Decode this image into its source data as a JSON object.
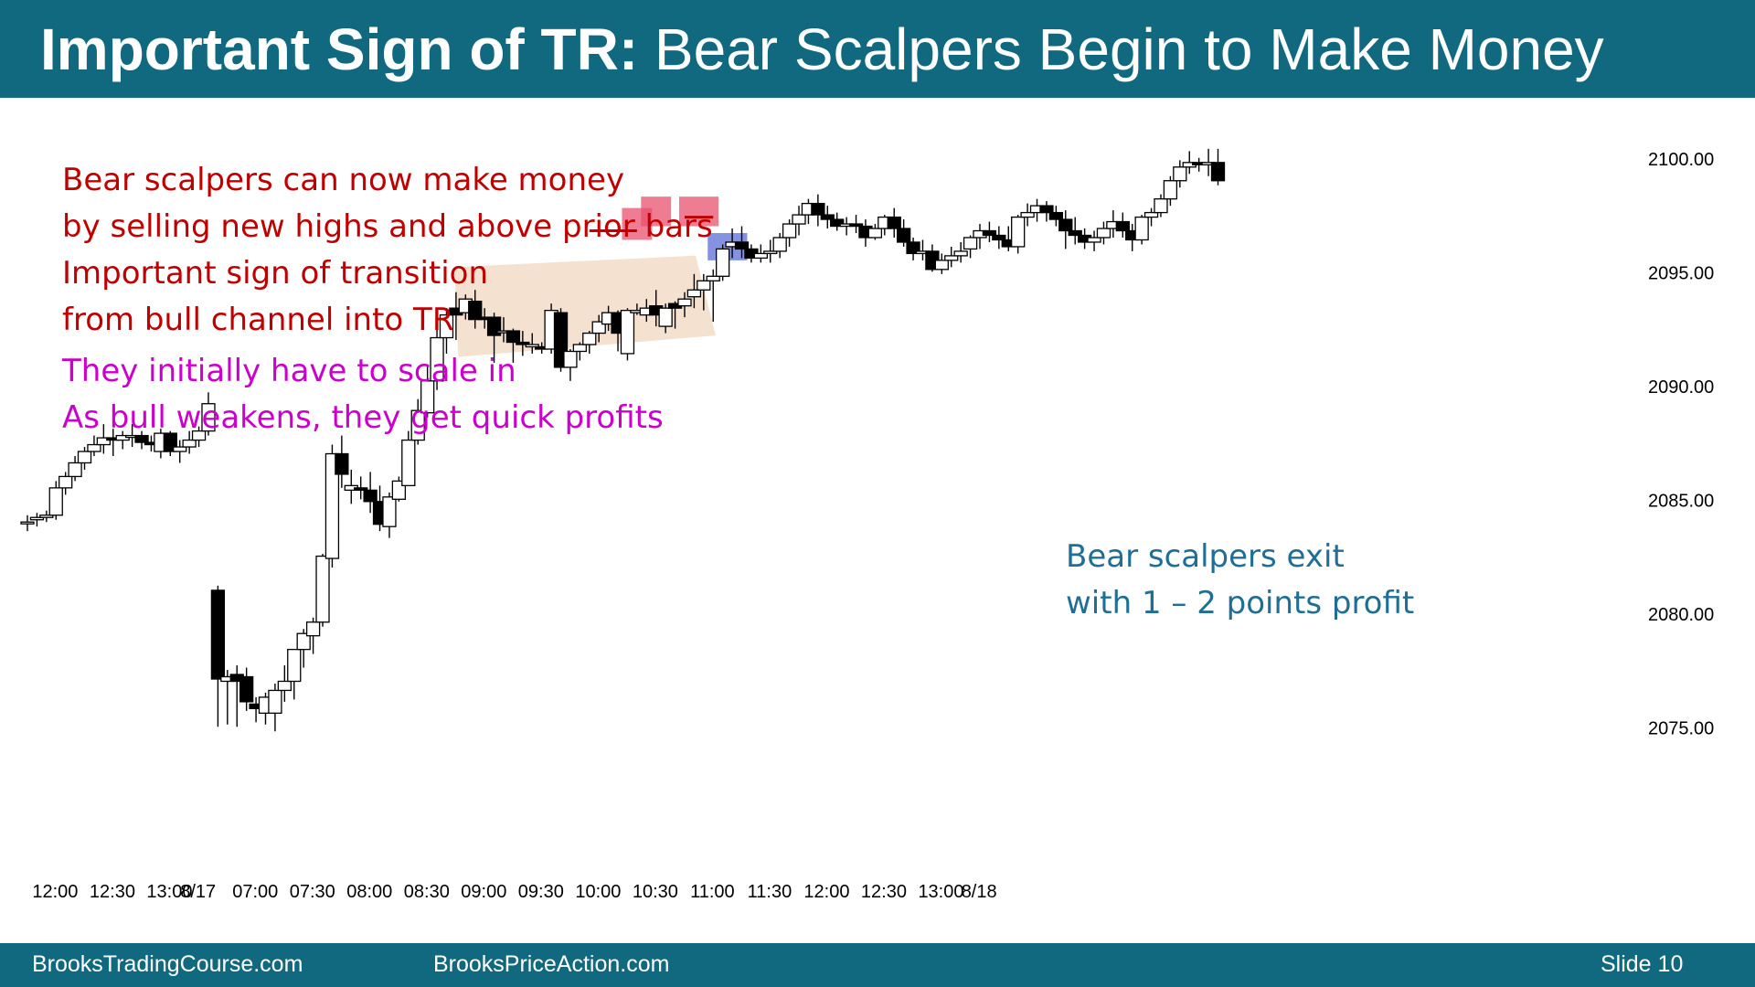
{
  "header": {
    "title_bold": "Important Sign of TR:",
    "title_rest": " Bear Scalpers Begin to Make Money",
    "bg_color": "#10697f"
  },
  "notes": [
    {
      "text": "Bear scalpers can now make money",
      "color": "#c00000"
    },
    {
      "text": "by selling new highs and above prior bars",
      "color": "#c00000"
    },
    {
      "text": "Important sign of transition",
      "color": "#c00000"
    },
    {
      "text": "from bull channel into TR",
      "color": "#c00000"
    },
    {
      "text": "They initially have to scale in",
      "color": "#cc00cc"
    },
    {
      "text": "As bull weakens, they get quick profits",
      "color": "#cc00cc"
    }
  ],
  "callout": {
    "lines": [
      "Bear scalpers exit",
      "with 1 – 2 points profit"
    ],
    "color": "#1f6e96"
  },
  "footer": {
    "left": "BrooksTradingCourse.com",
    "middle": "BrooksPriceAction.com",
    "right": "Slide  10"
  },
  "chart_data": {
    "type": "candlestick",
    "y_ticks": [
      2100,
      2095,
      2090,
      2085,
      2080,
      2075
    ],
    "y_tick_labels": [
      "2100.00",
      "2095.00",
      "2090.00",
      "2085.00",
      "2080.00",
      "2075.00"
    ],
    "ylim": [
      2072.2,
      2101.6
    ],
    "x_tick_labels": [
      {
        "bar": 1,
        "label": "12:00"
      },
      {
        "bar": 7,
        "label": "12:30"
      },
      {
        "bar": 13,
        "label": "13:00"
      },
      {
        "bar": 16,
        "label": "8/17"
      },
      {
        "bar": 22,
        "label": "07:00"
      },
      {
        "bar": 28,
        "label": "07:30"
      },
      {
        "bar": 34,
        "label": "08:00"
      },
      {
        "bar": 40,
        "label": "08:30"
      },
      {
        "bar": 46,
        "label": "09:00"
      },
      {
        "bar": 52,
        "label": "09:30"
      },
      {
        "bar": 58,
        "label": "10:00"
      },
      {
        "bar": 64,
        "label": "10:30"
      },
      {
        "bar": 70,
        "label": "11:00"
      },
      {
        "bar": 76,
        "label": "11:30"
      },
      {
        "bar": 82,
        "label": "12:00"
      },
      {
        "bar": 88,
        "label": "12:30"
      },
      {
        "bar": 94,
        "label": "13:00"
      },
      {
        "bar": 98,
        "label": "8/18"
      }
    ],
    "ohlc": [
      [
        2084.0,
        2084.3,
        2083.6,
        2084.0
      ],
      [
        2084.1,
        2084.4,
        2083.8,
        2084.2
      ],
      [
        2084.2,
        2084.5,
        2084.0,
        2084.3
      ],
      [
        2084.3,
        2085.8,
        2084.1,
        2085.5
      ],
      [
        2085.5,
        2086.2,
        2085.2,
        2086.0
      ],
      [
        2086.0,
        2086.9,
        2085.8,
        2086.6
      ],
      [
        2086.6,
        2087.3,
        2086.3,
        2087.1
      ],
      [
        2087.1,
        2087.8,
        2086.9,
        2087.4
      ],
      [
        2087.4,
        2088.3,
        2087.0,
        2087.7
      ],
      [
        2087.7,
        2088.1,
        2086.9,
        2087.6
      ],
      [
        2087.6,
        2088.0,
        2087.2,
        2087.8
      ],
      [
        2087.8,
        2088.3,
        2087.3,
        2087.8
      ],
      [
        2087.8,
        2088.0,
        2087.2,
        2087.5
      ],
      [
        2087.5,
        2087.8,
        2087.1,
        2087.4
      ],
      [
        2087.1,
        2088.1,
        2086.8,
        2087.9
      ],
      [
        2087.9,
        2088.0,
        2086.9,
        2087.1
      ],
      [
        2087.1,
        2087.6,
        2086.6,
        2087.3
      ],
      [
        2087.3,
        2088.0,
        2087.0,
        2087.6
      ],
      [
        2087.6,
        2088.2,
        2087.3,
        2088.0
      ],
      [
        2088.0,
        2089.7,
        2087.8,
        2089.2
      ],
      [
        2081.0,
        2081.2,
        2075.0,
        2077.1
      ],
      [
        2077.0,
        2077.5,
        2075.1,
        2077.2
      ],
      [
        2077.3,
        2077.7,
        2075.0,
        2077.0
      ],
      [
        2077.2,
        2077.6,
        2075.7,
        2076.1
      ],
      [
        2076.0,
        2076.3,
        2075.2,
        2075.8
      ],
      [
        2075.6,
        2076.5,
        2075.1,
        2076.3
      ],
      [
        2075.6,
        2076.9,
        2074.8,
        2076.6
      ],
      [
        2076.6,
        2077.7,
        2076.1,
        2077.0
      ],
      [
        2077.0,
        2078.4,
        2076.2,
        2078.4
      ],
      [
        2078.4,
        2079.3,
        2077.6,
        2079.1
      ],
      [
        2079.0,
        2079.8,
        2078.2,
        2079.6
      ],
      [
        2079.6,
        2082.6,
        2079.4,
        2082.5
      ],
      [
        2082.4,
        2087.4,
        2082.0,
        2087.0
      ],
      [
        2087.0,
        2087.8,
        2085.5,
        2086.1
      ],
      [
        2085.4,
        2086.3,
        2084.8,
        2085.6
      ],
      [
        2085.5,
        2086.0,
        2085.0,
        2085.4
      ],
      [
        2085.4,
        2086.2,
        2084.4,
        2084.9
      ],
      [
        2084.9,
        2085.6,
        2083.6,
        2083.9
      ],
      [
        2083.8,
        2085.3,
        2083.3,
        2085.1
      ],
      [
        2085.0,
        2086.0,
        2084.9,
        2085.8
      ],
      [
        2085.6,
        2088.0,
        2085.6,
        2087.6
      ],
      [
        2087.6,
        2089.4,
        2087.4,
        2088.9
      ],
      [
        2088.8,
        2090.9,
        2088.6,
        2090.2
      ],
      [
        2090.2,
        2093.1,
        2089.8,
        2092.1
      ],
      [
        2092.1,
        2093.4,
        2091.4,
        2093.1
      ],
      [
        2093.4,
        2094.1,
        2092.0,
        2093.1
      ],
      [
        2093.2,
        2094.0,
        2092.9,
        2093.8
      ],
      [
        2093.7,
        2094.2,
        2092.5,
        2092.9
      ],
      [
        2093.0,
        2093.4,
        2092.5,
        2092.9
      ],
      [
        2093.0,
        2093.2,
        2091.0,
        2092.2
      ],
      [
        2092.4,
        2093.0,
        2091.9,
        2092.4
      ],
      [
        2092.4,
        2092.5,
        2091.0,
        2091.9
      ],
      [
        2091.9,
        2092.4,
        2091.3,
        2091.8
      ],
      [
        2091.7,
        2092.3,
        2091.4,
        2091.8
      ],
      [
        2091.7,
        2091.9,
        2091.4,
        2091.6
      ],
      [
        2091.6,
        2093.6,
        2091.4,
        2093.3
      ],
      [
        2093.2,
        2093.4,
        2090.6,
        2090.8
      ],
      [
        2090.8,
        2091.6,
        2090.2,
        2091.5
      ],
      [
        2091.5,
        2091.9,
        2091.1,
        2091.8
      ],
      [
        2091.8,
        2092.4,
        2091.4,
        2092.3
      ],
      [
        2092.3,
        2093.1,
        2091.9,
        2092.8
      ],
      [
        2092.7,
        2093.5,
        2092.4,
        2093.2
      ],
      [
        2093.2,
        2093.3,
        2091.5,
        2092.3
      ],
      [
        2091.4,
        2093.4,
        2091.1,
        2093.3
      ],
      [
        2093.2,
        2093.6,
        2093.1,
        2093.3
      ],
      [
        2093.1,
        2093.8,
        2092.8,
        2093.4
      ],
      [
        2093.5,
        2094.2,
        2092.6,
        2093.1
      ],
      [
        2092.6,
        2093.6,
        2092.3,
        2093.4
      ],
      [
        2093.6,
        2093.7,
        2092.5,
        2093.4
      ],
      [
        2093.5,
        2094.1,
        2093.0,
        2093.8
      ],
      [
        2093.9,
        2094.9,
        2093.4,
        2094.2
      ],
      [
        2094.2,
        2094.9,
        2093.3,
        2094.6
      ],
      [
        2094.6,
        2095.1,
        2092.8,
        2094.8
      ],
      [
        2094.8,
        2096.2,
        2094.6,
        2096.0
      ],
      [
        2096.1,
        2096.9,
        2095.6,
        2096.3
      ],
      [
        2096.3,
        2097.0,
        2095.6,
        2096.0
      ],
      [
        2096.0,
        2096.2,
        2095.4,
        2095.6
      ],
      [
        2095.6,
        2096.2,
        2095.4,
        2095.8
      ],
      [
        2095.8,
        2096.4,
        2095.4,
        2095.9
      ],
      [
        2095.9,
        2096.7,
        2095.6,
        2096.5
      ],
      [
        2096.5,
        2097.3,
        2096.1,
        2097.1
      ],
      [
        2097.1,
        2097.9,
        2096.6,
        2097.5
      ],
      [
        2097.5,
        2098.2,
        2097.1,
        2098.0
      ],
      [
        2098.0,
        2098.4,
        2097.0,
        2097.5
      ],
      [
        2097.5,
        2097.9,
        2096.9,
        2097.3
      ],
      [
        2097.3,
        2097.6,
        2096.8,
        2097.0
      ],
      [
        2097.0,
        2097.4,
        2096.6,
        2097.1
      ],
      [
        2097.1,
        2097.5,
        2096.7,
        2097.0
      ],
      [
        2097.0,
        2097.3,
        2096.1,
        2096.5
      ],
      [
        2096.5,
        2097.1,
        2096.4,
        2096.9
      ],
      [
        2096.9,
        2097.5,
        2096.6,
        2097.4
      ],
      [
        2097.4,
        2097.8,
        2096.5,
        2096.9
      ],
      [
        2096.9,
        2097.3,
        2096.1,
        2096.3
      ],
      [
        2096.3,
        2096.5,
        2095.5,
        2095.8
      ],
      [
        2095.8,
        2096.4,
        2095.5,
        2095.9
      ],
      [
        2095.9,
        2096.2,
        2095.0,
        2095.1
      ],
      [
        2095.1,
        2095.8,
        2094.9,
        2095.5
      ],
      [
        2095.5,
        2096.1,
        2095.2,
        2095.7
      ],
      [
        2095.7,
        2096.3,
        2095.4,
        2095.9
      ],
      [
        2096.0,
        2096.6,
        2095.6,
        2096.5
      ],
      [
        2096.5,
        2097.1,
        2096.0,
        2096.8
      ],
      [
        2096.8,
        2097.2,
        2096.3,
        2096.6
      ],
      [
        2096.6,
        2097.0,
        2096.0,
        2096.4
      ],
      [
        2096.4,
        2097.0,
        2095.9,
        2096.1
      ],
      [
        2096.1,
        2097.5,
        2095.8,
        2097.4
      ],
      [
        2097.4,
        2098.0,
        2097.0,
        2097.6
      ],
      [
        2097.6,
        2098.2,
        2097.2,
        2097.9
      ],
      [
        2097.9,
        2098.1,
        2097.2,
        2097.6
      ],
      [
        2097.6,
        2097.9,
        2097.0,
        2097.3
      ],
      [
        2097.3,
        2097.7,
        2096.0,
        2096.8
      ],
      [
        2096.8,
        2097.4,
        2096.2,
        2096.6
      ],
      [
        2096.6,
        2096.9,
        2096.0,
        2096.3
      ],
      [
        2096.3,
        2096.8,
        2095.9,
        2096.5
      ],
      [
        2096.5,
        2097.2,
        2096.2,
        2096.9
      ],
      [
        2096.9,
        2097.7,
        2096.5,
        2097.2
      ],
      [
        2097.2,
        2097.6,
        2096.5,
        2096.8
      ],
      [
        2096.8,
        2097.1,
        2095.9,
        2096.4
      ],
      [
        2096.4,
        2097.5,
        2096.2,
        2097.4
      ],
      [
        2097.4,
        2097.8,
        2097.0,
        2097.6
      ],
      [
        2097.6,
        2098.4,
        2097.4,
        2098.2
      ],
      [
        2098.2,
        2099.2,
        2097.9,
        2099.0
      ],
      [
        2099.0,
        2099.9,
        2098.7,
        2099.6
      ],
      [
        2099.6,
        2100.3,
        2099.3,
        2099.8
      ],
      [
        2099.8,
        2100.0,
        2099.4,
        2099.7
      ],
      [
        2099.7,
        2100.4,
        2099.2,
        2099.8
      ],
      [
        2099.8,
        2100.4,
        2098.8,
        2099.0
      ]
    ],
    "channel_box": {
      "bars": [
        46,
        69
      ],
      "color": "#f3dcc8"
    },
    "red_line": {
      "from_bar": 59,
      "to_bar": 64,
      "price": 2096.8,
      "color": "#c00000"
    },
    "red_line_2": {
      "from_bar": 69,
      "to_bar": 72,
      "price": 2097.4,
      "color": "#c00000"
    },
    "red_boxes": [
      {
        "from_bar": 63,
        "to_bar": 65,
        "high": 2097.8,
        "low": 2096.4
      },
      {
        "from_bar": 65,
        "to_bar": 67,
        "high": 2098.3,
        "low": 2097.0
      },
      {
        "from_bar": 69,
        "to_bar": 72,
        "high": 2098.3,
        "low": 2097.0
      }
    ],
    "red_box_color": "#e8506e",
    "blue_boxes": [
      {
        "from_bar": 72,
        "to_bar": 75,
        "high": 2096.7,
        "low": 2095.5
      }
    ],
    "blue_box_color": "#5a6fd8",
    "grid": false
  }
}
